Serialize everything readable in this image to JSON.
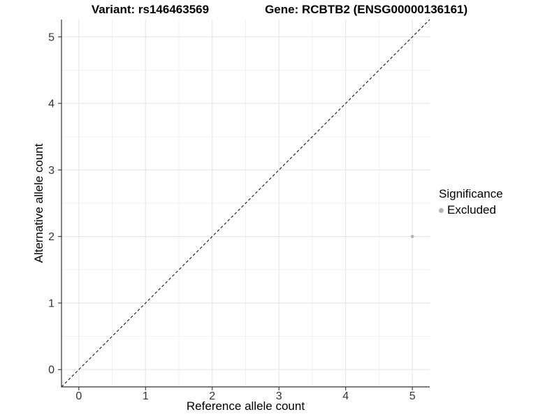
{
  "title": {
    "variant": "Variant: rs146463569",
    "gene": "Gene: RCBTB2 (ENSG00000136161)"
  },
  "axes": {
    "x_label": "Reference allele count",
    "y_label": "Alternative allele count"
  },
  "legend": {
    "title": "Significance",
    "items": [
      {
        "label": "Excluded",
        "color": "#b5b5b5"
      }
    ]
  },
  "chart_data": {
    "type": "scatter",
    "title": "Variant: rs146463569   Gene: RCBTB2 (ENSG00000136161)",
    "xlabel": "Reference allele count",
    "ylabel": "Alternative allele count",
    "xlim": [
      -0.26,
      5.26
    ],
    "ylim": [
      -0.26,
      5.26
    ],
    "xticks": [
      0,
      1,
      2,
      3,
      4,
      5
    ],
    "yticks": [
      0,
      1,
      2,
      3,
      4,
      5
    ],
    "grid": {
      "major": true,
      "minor": true
    },
    "legend_title": "Significance",
    "legend_position": "right",
    "series": [
      {
        "name": "Excluded",
        "color": "#b5b5b5",
        "marker": "circle",
        "points": [
          {
            "x": 5,
            "y": 2
          }
        ]
      }
    ],
    "reference_line": {
      "type": "identity y=x",
      "style": "dashed",
      "color": "#000000"
    },
    "colors": {
      "major_grid": "#e6e6e6",
      "minor_grid": "#f2f2f2",
      "axis": "#333333",
      "tick_text": "#333333",
      "background": "#ffffff"
    }
  }
}
